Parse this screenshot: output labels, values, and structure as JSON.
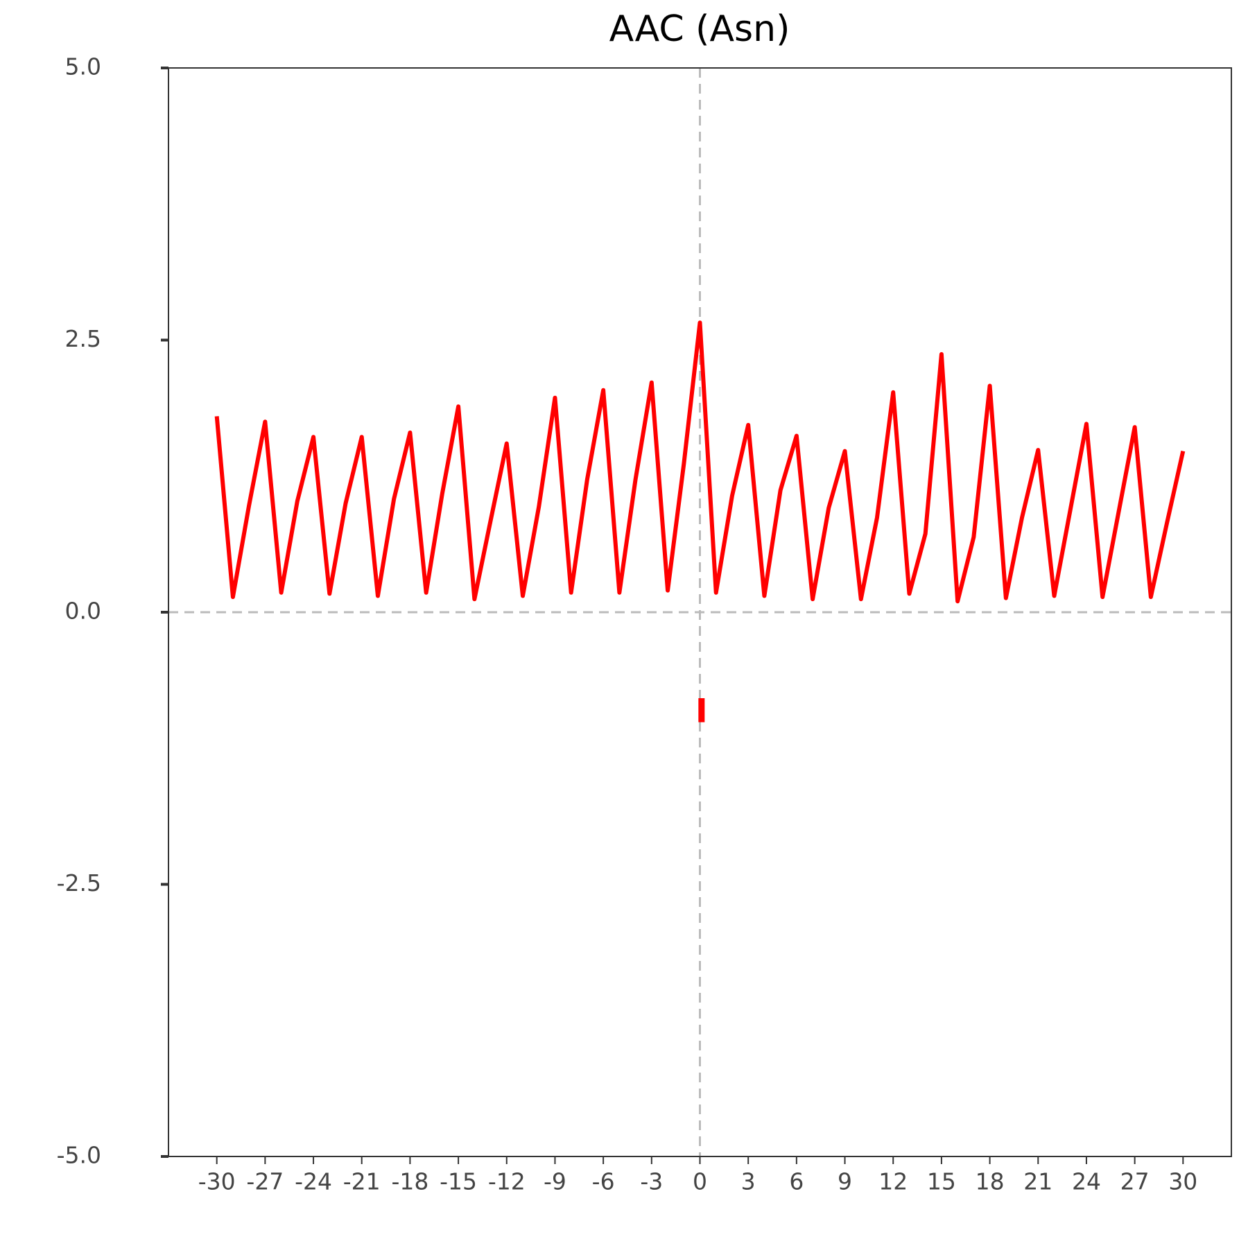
{
  "chart_data": {
    "type": "line",
    "title": "AAC (Asn)",
    "x": [
      -30,
      -29,
      -28,
      -27,
      -26,
      -25,
      -24,
      -23,
      -22,
      -21,
      -20,
      -19,
      -18,
      -17,
      -16,
      -15,
      -14,
      -13,
      -12,
      -11,
      -10,
      -9,
      -8,
      -7,
      -6,
      -5,
      -4,
      -3,
      -2,
      -1,
      0,
      1,
      2,
      3,
      4,
      5,
      6,
      7,
      8,
      9,
      10,
      11,
      12,
      13,
      14,
      15,
      16,
      17,
      18,
      19,
      20,
      21,
      22,
      23,
      24,
      25,
      26,
      27,
      28,
      29,
      30
    ],
    "series": [
      {
        "color": "#ff0000",
        "values": [
          1.8,
          0.14,
          0.98,
          1.75,
          0.18,
          1.02,
          1.61,
          0.17,
          1.0,
          1.61,
          0.15,
          1.04,
          1.65,
          0.18,
          1.09,
          1.89,
          0.12,
          0.84,
          1.55,
          0.15,
          0.97,
          1.97,
          0.18,
          1.22,
          2.04,
          0.18,
          1.22,
          2.11,
          0.2,
          1.36,
          2.66,
          0.18,
          1.07,
          1.72,
          0.15,
          1.12,
          1.62,
          0.12,
          0.96,
          1.48,
          0.12,
          0.87,
          2.02,
          0.17,
          0.72,
          2.37,
          0.1,
          0.69,
          2.08,
          0.13,
          0.87,
          1.49,
          0.15,
          0.94,
          1.73,
          0.14,
          0.92,
          1.7,
          0.14,
          0.82,
          1.48
        ]
      },
      {
        "color": "#ff0000",
        "x": [
          0.1,
          0.1
        ],
        "values": [
          -0.79,
          -1.01
        ]
      }
    ],
    "xlim": [
      -33,
      33
    ],
    "ylim": [
      -5,
      5
    ],
    "xticks": [
      -30,
      -27,
      -24,
      -21,
      -18,
      -15,
      -12,
      -9,
      -6,
      -3,
      0,
      3,
      6,
      9,
      12,
      15,
      18,
      21,
      24,
      27,
      30
    ],
    "yticks": [
      {
        "value": -5,
        "label": "-5.0"
      },
      -2.5,
      {
        "value": 0,
        "label": "0.0"
      },
      2.5,
      {
        "value": 5,
        "label": "5.0"
      }
    ],
    "hlines": [
      0
    ],
    "vlines": [
      0
    ]
  }
}
